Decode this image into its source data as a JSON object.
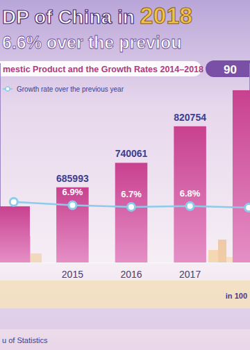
{
  "chart_data": {
    "type": "bar",
    "title": "DP of China in 2018",
    "subtitle": "6.6% over the previou",
    "annotations": [
      "mestic Product and the Growth Rates 2014–2018",
      "90",
      "in 100",
      "u of Statistics"
    ],
    "categories": [
      null,
      "2015",
      "2016",
      "2017",
      null
    ],
    "values": [
      643974,
      685993,
      740061,
      820754,
      900309
    ],
    "value_labels": [
      null,
      "685993",
      "740061",
      "820754",
      null
    ],
    "color": "#c8418f",
    "data_labels": true,
    "tick_labels": "x",
    "grid": false,
    "legend": "top-left",
    "ylim": [
      520000,
      960000
    ],
    "yticks": [],
    "y2lim": [
      0,
      24
    ],
    "y2ticks": [],
    "series": [
      {
        "name": "Growth rate over the previous year",
        "type": "line",
        "axis": "y2",
        "color": "#8ccbea",
        "marker": "circle",
        "values": [
          7.3,
          6.9,
          6.7,
          6.8,
          6.6
        ],
        "value_labels": [
          null,
          "6.9%",
          "6.7%",
          "6.8%",
          null
        ]
      }
    ]
  }
}
